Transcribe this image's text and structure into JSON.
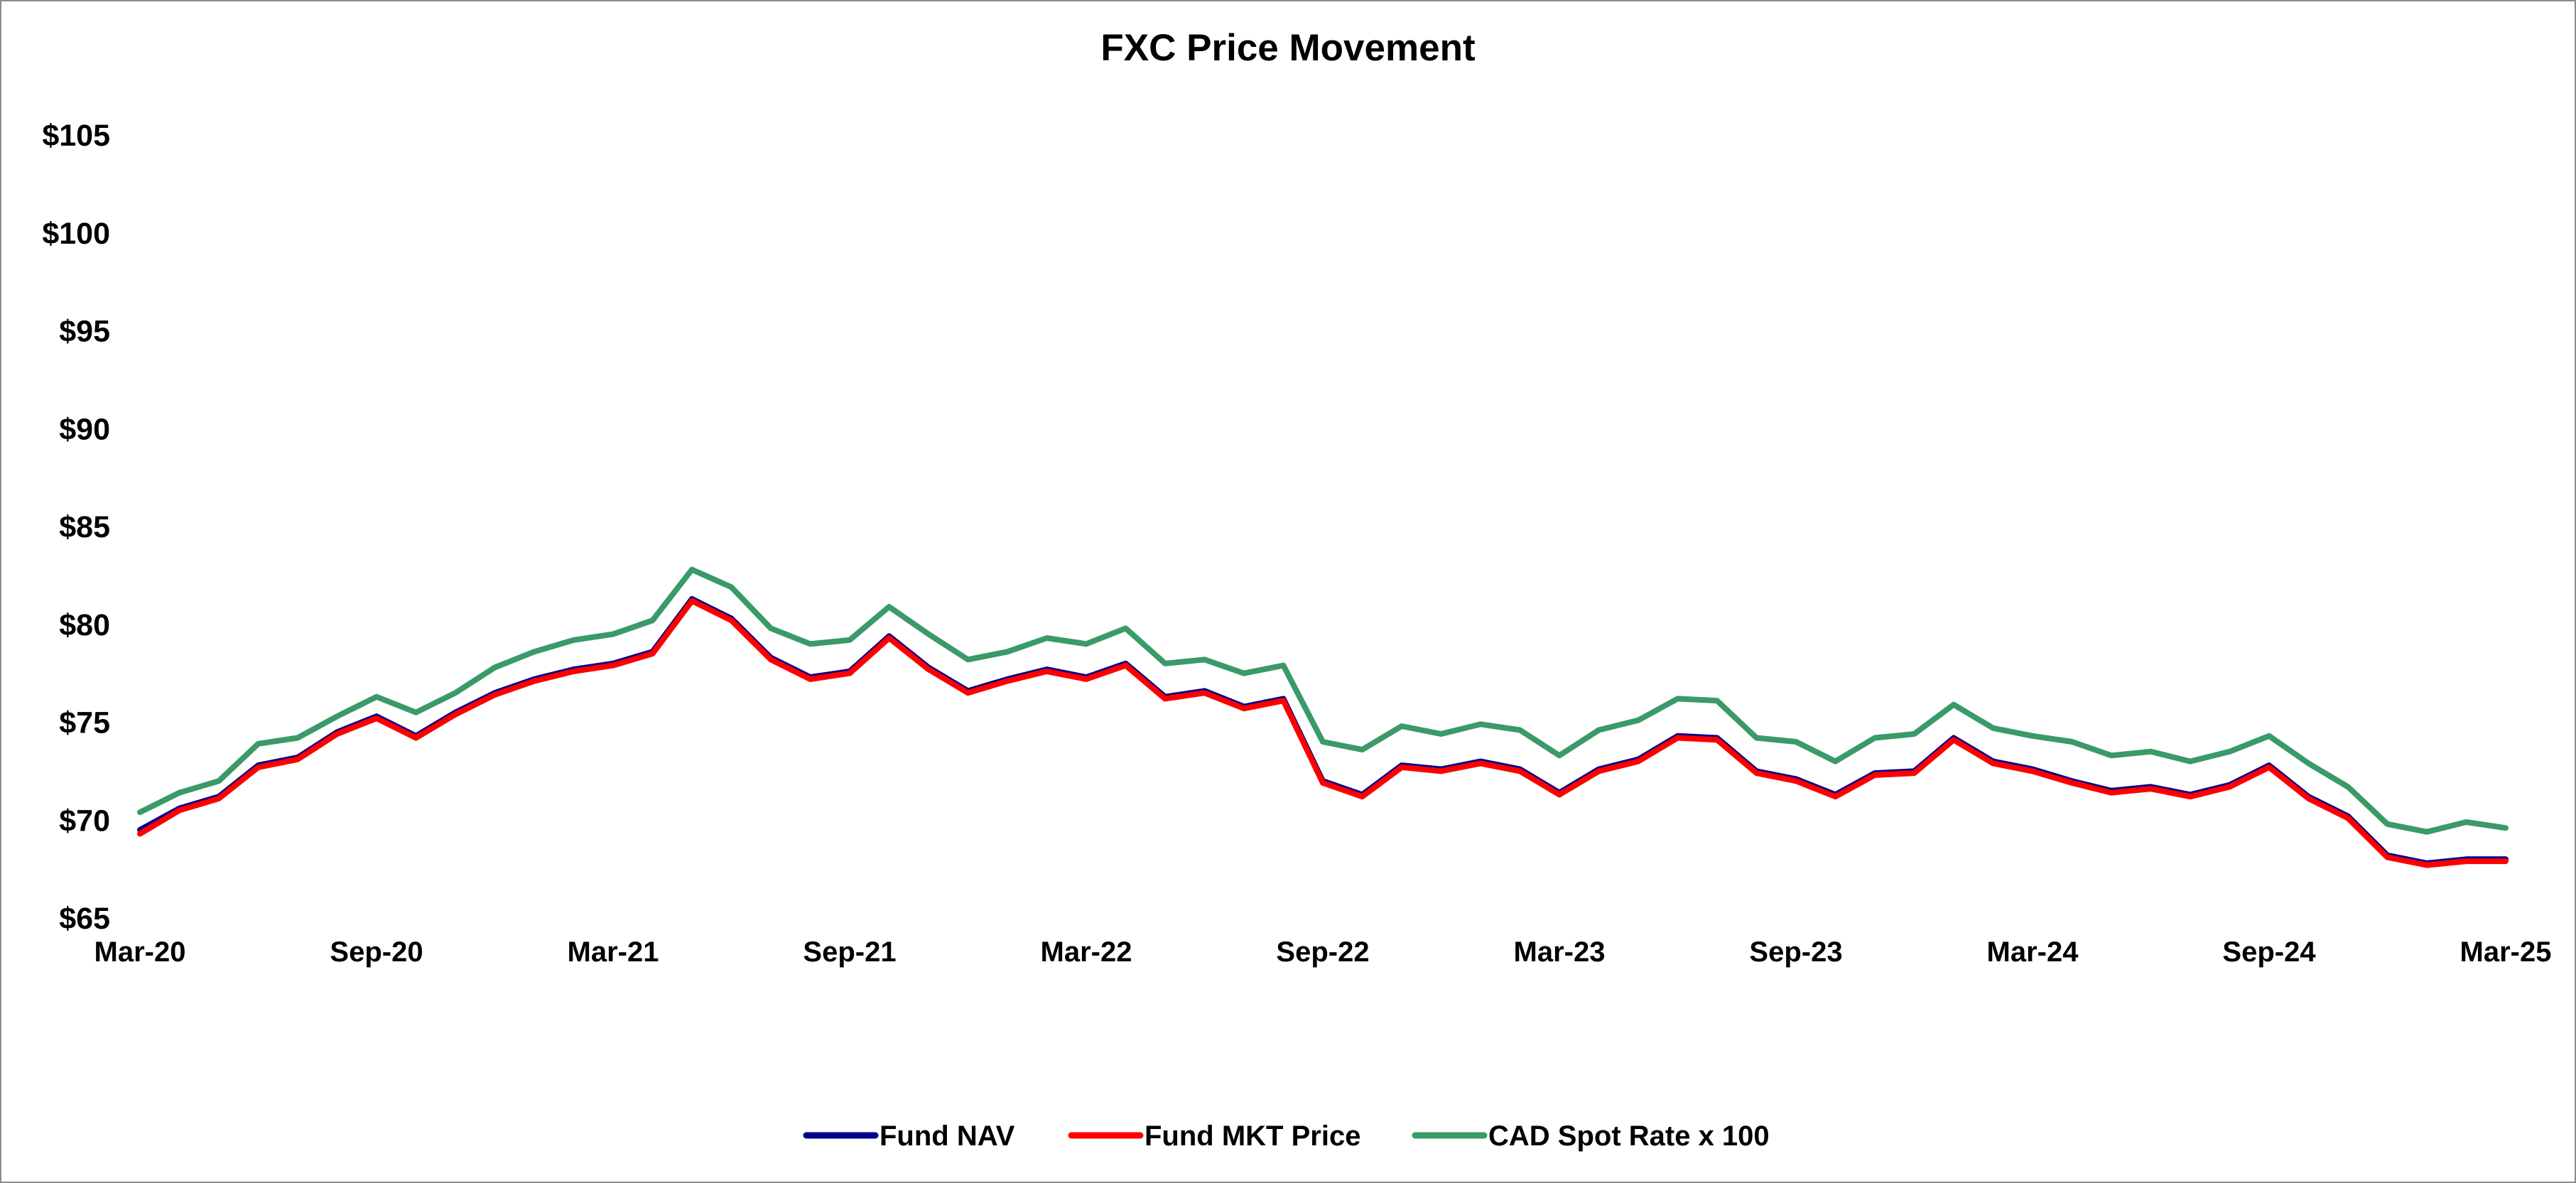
{
  "chart_data": {
    "type": "line",
    "title": "FXC Price Movement",
    "xlabel": "",
    "ylabel": "",
    "ylim": [
      65,
      105
    ],
    "y_ticks": [
      65,
      70,
      75,
      80,
      85,
      90,
      95,
      100,
      105
    ],
    "y_tick_labels": [
      "$65",
      "$70",
      "$75",
      "$80",
      "$85",
      "$90",
      "$95",
      "$100",
      "$105"
    ],
    "x_range": [
      "2020-03",
      "2025-03"
    ],
    "x_tick_labels": [
      "Mar-20",
      "Sep-20",
      "Mar-21",
      "Sep-21",
      "Mar-22",
      "Sep-22",
      "Mar-23",
      "Sep-23",
      "Mar-24",
      "Sep-24",
      "Mar-25"
    ],
    "grid": false,
    "legend_position": "bottom",
    "x": [
      "2020-03",
      "2020-04",
      "2020-05",
      "2020-06",
      "2020-07",
      "2020-08",
      "2020-09",
      "2020-10",
      "2020-11",
      "2020-12",
      "2021-01",
      "2021-02",
      "2021-03",
      "2021-04",
      "2021-05",
      "2021-06",
      "2021-07",
      "2021-08",
      "2021-09",
      "2021-10",
      "2021-11",
      "2021-12",
      "2022-01",
      "2022-02",
      "2022-03",
      "2022-04",
      "2022-05",
      "2022-06",
      "2022-07",
      "2022-08",
      "2022-09",
      "2022-10",
      "2022-11",
      "2022-12",
      "2023-01",
      "2023-02",
      "2023-03",
      "2023-04",
      "2023-05",
      "2023-06",
      "2023-07",
      "2023-08",
      "2023-09",
      "2023-10",
      "2023-11",
      "2023-12",
      "2024-01",
      "2024-02",
      "2024-03",
      "2024-04",
      "2024-05",
      "2024-06",
      "2024-07",
      "2024-08",
      "2024-09",
      "2024-10",
      "2024-11",
      "2024-12",
      "2025-01",
      "2025-02",
      "2025-03"
    ],
    "series": [
      {
        "name": "Fund NAV",
        "color": "#00008b",
        "values": [
          69.5,
          70.6,
          71.2,
          72.8,
          73.2,
          74.5,
          75.3,
          74.3,
          75.5,
          76.5,
          77.2,
          77.7,
          78.0,
          78.6,
          81.3,
          80.3,
          78.3,
          77.3,
          77.6,
          79.4,
          77.8,
          76.6,
          77.2,
          77.7,
          77.3,
          78.0,
          76.3,
          76.6,
          75.8,
          76.2,
          72.0,
          71.3,
          72.8,
          72.6,
          73.0,
          72.6,
          71.4,
          72.6,
          73.1,
          74.3,
          74.2,
          72.5,
          72.1,
          71.3,
          72.4,
          72.5,
          74.2,
          73.0,
          72.6,
          72.0,
          71.5,
          71.7,
          71.3,
          71.8,
          72.8,
          71.2,
          70.2,
          68.2,
          67.8,
          68.0,
          68.0
        ]
      },
      {
        "name": "Fund MKT Price",
        "color": "#ff0000",
        "values": [
          69.3,
          70.5,
          71.1,
          72.7,
          73.1,
          74.4,
          75.2,
          74.2,
          75.4,
          76.4,
          77.1,
          77.6,
          77.9,
          78.5,
          81.2,
          80.2,
          78.2,
          77.2,
          77.5,
          79.3,
          77.7,
          76.5,
          77.1,
          77.6,
          77.2,
          77.9,
          76.2,
          76.5,
          75.7,
          76.1,
          71.9,
          71.2,
          72.7,
          72.5,
          72.9,
          72.5,
          71.3,
          72.5,
          73.0,
          74.2,
          74.1,
          72.4,
          72.0,
          71.2,
          72.3,
          72.4,
          74.1,
          72.9,
          72.5,
          71.9,
          71.4,
          71.6,
          71.2,
          71.7,
          72.7,
          71.1,
          70.1,
          68.1,
          67.7,
          67.9,
          67.9
        ]
      },
      {
        "name": "CAD Spot Rate x 100",
        "color": "#3a9a68",
        "values": [
          70.4,
          71.4,
          72.0,
          73.9,
          74.2,
          75.3,
          76.3,
          75.5,
          76.5,
          77.8,
          78.6,
          79.2,
          79.5,
          80.2,
          82.8,
          81.9,
          79.8,
          79.0,
          79.2,
          80.9,
          79.5,
          78.2,
          78.6,
          79.3,
          79.0,
          79.8,
          78.0,
          78.2,
          77.5,
          77.9,
          74.0,
          73.6,
          74.8,
          74.4,
          74.9,
          74.6,
          73.3,
          74.6,
          75.1,
          76.2,
          76.1,
          74.2,
          74.0,
          73.0,
          74.2,
          74.4,
          75.9,
          74.7,
          74.3,
          74.0,
          73.3,
          73.5,
          73.0,
          73.5,
          74.3,
          72.9,
          71.7,
          69.8,
          69.4,
          69.9,
          69.6
        ]
      }
    ]
  }
}
